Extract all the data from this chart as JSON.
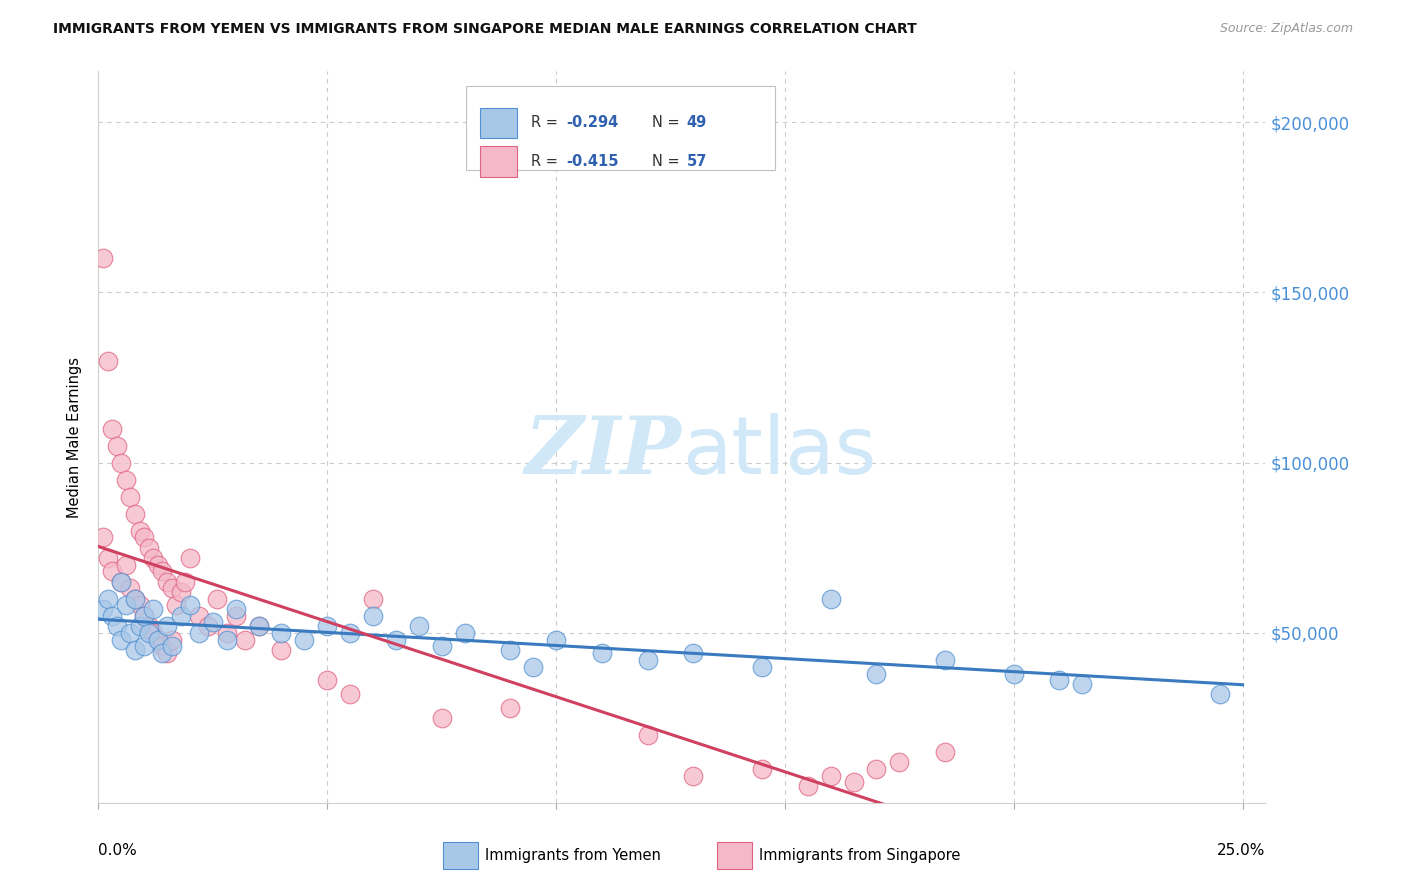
{
  "title": "IMMIGRANTS FROM YEMEN VS IMMIGRANTS FROM SINGAPORE MEDIAN MALE EARNINGS CORRELATION CHART",
  "source": "Source: ZipAtlas.com",
  "ylabel": "Median Male Earnings",
  "ytick_labels": [
    "$50,000",
    "$100,000",
    "$150,000",
    "$200,000"
  ],
  "ytick_values": [
    50000,
    100000,
    150000,
    200000
  ],
  "ylim": [
    0,
    215000
  ],
  "xlim": [
    0.0,
    0.255
  ],
  "legend_label_yemen": "Immigrants from Yemen",
  "legend_label_singapore": "Immigrants from Singapore",
  "color_yemen_fill": "#a8c8e8",
  "color_singapore_fill": "#f4b8c8",
  "color_yemen_edge": "#5090d0",
  "color_singapore_edge": "#e06080",
  "color_yemen_line": "#3a7abf",
  "color_singapore_line": "#d04060",
  "color_r_value": "#3060b0",
  "color_ytick": "#4a90d9",
  "watermark_color": "#d0e8f8",
  "yemen_x": [
    0.001,
    0.002,
    0.003,
    0.004,
    0.005,
    0.005,
    0.006,
    0.007,
    0.008,
    0.008,
    0.009,
    0.01,
    0.01,
    0.011,
    0.012,
    0.013,
    0.014,
    0.015,
    0.016,
    0.018,
    0.02,
    0.022,
    0.025,
    0.028,
    0.03,
    0.035,
    0.04,
    0.045,
    0.05,
    0.055,
    0.06,
    0.065,
    0.07,
    0.075,
    0.08,
    0.09,
    0.095,
    0.1,
    0.11,
    0.12,
    0.13,
    0.145,
    0.16,
    0.17,
    0.185,
    0.2,
    0.21,
    0.215,
    0.245
  ],
  "yemen_y": [
    57000,
    60000,
    55000,
    52000,
    65000,
    48000,
    58000,
    50000,
    60000,
    45000,
    52000,
    55000,
    46000,
    50000,
    57000,
    48000,
    44000,
    52000,
    46000,
    55000,
    58000,
    50000,
    53000,
    48000,
    57000,
    52000,
    50000,
    48000,
    52000,
    50000,
    55000,
    48000,
    52000,
    46000,
    50000,
    45000,
    40000,
    48000,
    44000,
    42000,
    44000,
    40000,
    60000,
    38000,
    42000,
    38000,
    36000,
    35000,
    32000
  ],
  "singapore_x": [
    0.001,
    0.001,
    0.002,
    0.002,
    0.003,
    0.003,
    0.004,
    0.005,
    0.005,
    0.006,
    0.006,
    0.007,
    0.007,
    0.008,
    0.008,
    0.009,
    0.009,
    0.01,
    0.01,
    0.011,
    0.011,
    0.012,
    0.012,
    0.013,
    0.013,
    0.014,
    0.014,
    0.015,
    0.015,
    0.016,
    0.016,
    0.017,
    0.018,
    0.019,
    0.02,
    0.022,
    0.024,
    0.026,
    0.028,
    0.03,
    0.032,
    0.035,
    0.04,
    0.05,
    0.055,
    0.06,
    0.075,
    0.09,
    0.12,
    0.13,
    0.145,
    0.155,
    0.16,
    0.165,
    0.17,
    0.175,
    0.185
  ],
  "singapore_y": [
    160000,
    78000,
    130000,
    72000,
    110000,
    68000,
    105000,
    100000,
    65000,
    95000,
    70000,
    90000,
    63000,
    85000,
    60000,
    80000,
    58000,
    78000,
    55000,
    75000,
    52000,
    72000,
    50000,
    70000,
    48000,
    68000,
    46000,
    65000,
    44000,
    63000,
    48000,
    58000,
    62000,
    65000,
    72000,
    55000,
    52000,
    60000,
    50000,
    55000,
    48000,
    52000,
    45000,
    36000,
    32000,
    60000,
    25000,
    28000,
    20000,
    8000,
    10000,
    5000,
    8000,
    6000,
    10000,
    12000,
    15000
  ]
}
